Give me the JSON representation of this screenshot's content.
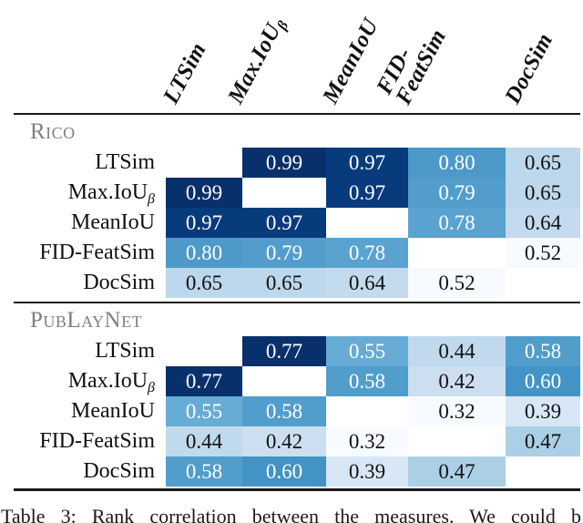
{
  "table": {
    "caption": "Table 3: Rank correlation between the measures. We could b",
    "columns": [
      {
        "text": "LTSim",
        "sub": ""
      },
      {
        "text": "Max.IoU",
        "sub": "β"
      },
      {
        "text": "MeanIoU",
        "sub": ""
      },
      {
        "text": "FID-\nFeatSim",
        "sub": ""
      },
      {
        "text": "DocSim",
        "sub": ""
      }
    ],
    "colormap": [
      "#f7fbff",
      "#deebf7",
      "#c6dbef",
      "#9ecae1",
      "#6baed6",
      "#4292c6",
      "#2171b5",
      "#08519c",
      "#08306b"
    ],
    "diagonal_color": "#ffffff",
    "text_dark": "#111111",
    "text_light": "#ffffff",
    "rule_color": "#1a1a1a",
    "section_label_color": "#7f7f7f",
    "sections": [
      {
        "label": "Rico",
        "rows": [
          {
            "label": "LTSim",
            "sub": "",
            "values": [
              "",
              "0.99",
              "0.97",
              "0.80",
              "0.65"
            ]
          },
          {
            "label": "Max.IoU",
            "sub": "β",
            "values": [
              "0.99",
              "",
              "0.97",
              "0.79",
              "0.65"
            ]
          },
          {
            "label": "MeanIoU",
            "sub": "",
            "values": [
              "0.97",
              "0.97",
              "",
              "0.78",
              "0.64"
            ]
          },
          {
            "label": "FID-FeatSim",
            "sub": "",
            "values": [
              "0.80",
              "0.79",
              "0.78",
              "",
              "0.52"
            ]
          },
          {
            "label": "DocSim",
            "sub": "",
            "values": [
              "0.65",
              "0.65",
              "0.64",
              "0.52",
              ""
            ]
          }
        ]
      },
      {
        "label": "PubLayNet",
        "rows": [
          {
            "label": "LTSim",
            "sub": "",
            "values": [
              "",
              "0.77",
              "0.55",
              "0.44",
              "0.58"
            ]
          },
          {
            "label": "Max.IoU",
            "sub": "β",
            "values": [
              "0.77",
              "",
              "0.58",
              "0.42",
              "0.60"
            ]
          },
          {
            "label": "MeanIoU",
            "sub": "",
            "values": [
              "0.55",
              "0.58",
              "",
              "0.32",
              "0.39"
            ]
          },
          {
            "label": "FID-FeatSim",
            "sub": "",
            "values": [
              "0.44",
              "0.42",
              "0.32",
              "",
              "0.47"
            ]
          },
          {
            "label": "DocSim",
            "sub": "",
            "values": [
              "0.58",
              "0.60",
              "0.39",
              "0.47",
              ""
            ]
          }
        ]
      }
    ],
    "chart_data": {
      "type": "heatmap",
      "title": "Rank correlation between the measures",
      "row_labels": [
        "LTSim",
        "Max.IoUβ",
        "MeanIoU",
        "FID-FeatSim",
        "DocSim"
      ],
      "col_labels": [
        "LTSim",
        "Max.IoUβ",
        "MeanIoU",
        "FID-FeatSim",
        "DocSim"
      ],
      "blocks": [
        {
          "name": "RICO",
          "matrix": [
            [
              null,
              0.99,
              0.97,
              0.8,
              0.65
            ],
            [
              0.99,
              null,
              0.97,
              0.79,
              0.65
            ],
            [
              0.97,
              0.97,
              null,
              0.78,
              0.64
            ],
            [
              0.8,
              0.79,
              0.78,
              null,
              0.52
            ],
            [
              0.65,
              0.65,
              0.64,
              0.52,
              null
            ]
          ]
        },
        {
          "name": "PubLayNet",
          "matrix": [
            [
              null,
              0.77,
              0.55,
              0.44,
              0.58
            ],
            [
              0.77,
              null,
              0.58,
              0.42,
              0.6
            ],
            [
              0.55,
              0.58,
              null,
              0.32,
              0.39
            ],
            [
              0.44,
              0.42,
              0.32,
              null,
              0.47
            ],
            [
              0.58,
              0.6,
              0.39,
              0.47,
              null
            ]
          ]
        }
      ],
      "colormap": "Blues (normalized per block: min value → white, max value → navy)"
    }
  }
}
